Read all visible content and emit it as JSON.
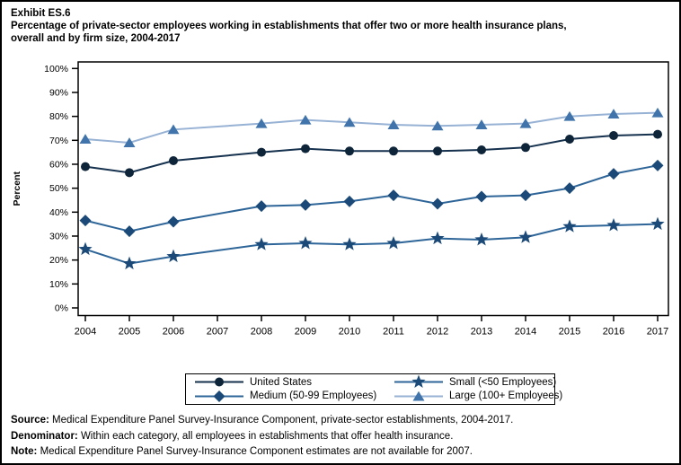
{
  "header": {
    "exhibit_label": "Exhibit ES.6",
    "title_line1": "Percentage of private-sector employees working in establishments that offer two or more health insurance plans,",
    "title_line2": "overall and by firm size, 2004-2017"
  },
  "chart_data": {
    "type": "line",
    "title": "Percentage of private-sector employees working in establishments that offer two or more health insurance plans, overall and by firm size, 2004-2017",
    "xlabel": "",
    "ylabel": "Percent",
    "ylim": [
      0,
      100
    ],
    "ytick_step": 10,
    "ytick_suffix": "%",
    "grid": false,
    "x": [
      2004,
      2005,
      2006,
      2007,
      2008,
      2009,
      2010,
      2011,
      2012,
      2013,
      2014,
      2015,
      2016,
      2017
    ],
    "missing_note": "No estimates for 2007; lines connect 2006 to 2008 directly",
    "series": [
      {
        "name": "United States",
        "marker": "circle",
        "marker_color": "#0e2439",
        "line_color": "#15314e",
        "values": [
          59,
          56.5,
          61.5,
          null,
          65,
          66.5,
          65.5,
          65.5,
          65.5,
          66,
          67,
          70.5,
          72,
          72.5
        ]
      },
      {
        "name": "Small (<50 Employees)",
        "marker": "star",
        "marker_color": "#1b4a78",
        "line_color": "#2e6598",
        "values": [
          24.5,
          18.5,
          21.5,
          null,
          26.5,
          27,
          26.5,
          27,
          29,
          28.5,
          29.5,
          34,
          34.5,
          35
        ]
      },
      {
        "name": "Medium (50-99 Employees)",
        "marker": "diamond",
        "marker_color": "#1b4a78",
        "line_color": "#2e6598",
        "values": [
          36.5,
          32,
          36,
          null,
          42.5,
          43,
          44.5,
          47,
          43.5,
          46.5,
          47,
          50,
          56,
          59.5
        ]
      },
      {
        "name": "Large (100+ Employees)",
        "marker": "triangle",
        "marker_color": "#4074ab",
        "line_color": "#97b2d4",
        "values": [
          70.5,
          69,
          74.5,
          null,
          77,
          78.5,
          77.5,
          76.5,
          76,
          76.5,
          77,
          80,
          81,
          81.5
        ]
      }
    ],
    "legend": {
      "position": "bottom",
      "order_row_major": [
        "United States",
        "Small (<50 Employees)",
        "Medium (50-99 Employees)",
        "Large (100+ Employees)"
      ]
    }
  },
  "footer": {
    "lines": [
      {
        "prefix": "Source:",
        "text": " Medical Expenditure Panel Survey-Insurance Component, private-sector establishments, 2004-2017."
      },
      {
        "prefix": "Denominator:",
        "text": " Within each category, all employees in establishments that offer health insurance."
      },
      {
        "prefix": "Note:",
        "text": " Medical Expenditure Panel Survey-Insurance Component estimates are not available for 2007."
      }
    ]
  }
}
